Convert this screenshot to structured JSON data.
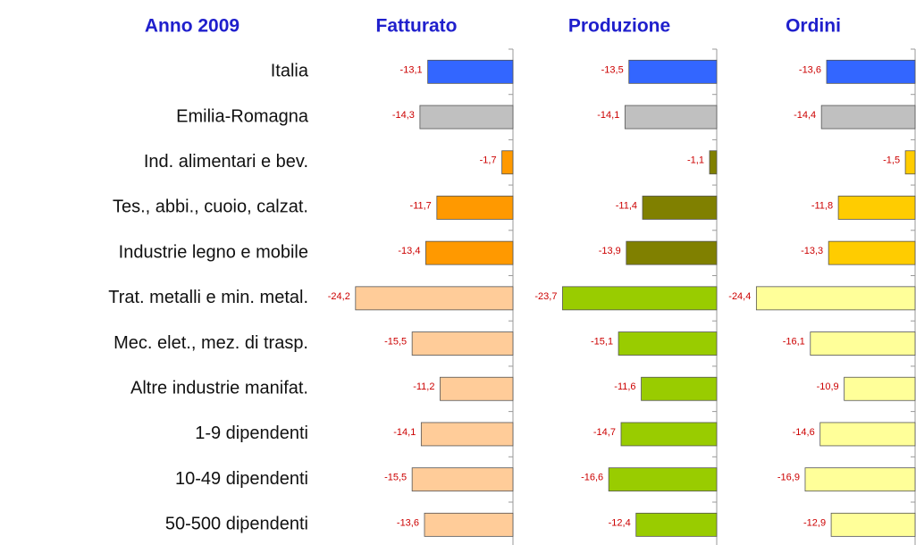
{
  "chart_data": {
    "type": "bar",
    "orientation": "horizontal",
    "title": "Anno 2009",
    "categories": [
      "Italia",
      "Emilia-Romagna",
      "Ind. alimentari e bev.",
      "Tes., abbi., cuoio, calzat.",
      "Industrie legno e mobile",
      "Trat. metalli e min. metal.",
      "Mec. elet., mez. di trasp.",
      "Altre industrie manifat.",
      "1-9 dipendenti",
      "10-49 dipendenti",
      "50-500 dipendenti"
    ],
    "xlim": [
      -25,
      0
    ],
    "series": [
      {
        "name": "Fatturato",
        "colors": [
          "#3366ff",
          "#c0c0c0",
          "#ff9900",
          "#ff9900",
          "#ff9900",
          "#ffcc99",
          "#ffcc99",
          "#ffcc99",
          "#ffcc99",
          "#ffcc99",
          "#ffcc99"
        ],
        "values": [
          -13.1,
          -14.3,
          -1.7,
          -11.7,
          -13.4,
          -24.2,
          -15.5,
          -11.2,
          -14.1,
          -15.5,
          -13.6
        ],
        "value_labels": [
          "-13,1",
          "-14,3",
          "-1,7",
          "-11,7",
          "-13,4",
          "-24,2",
          "-15,5",
          "-11,2",
          "-14,1",
          "-15,5",
          "-13,6"
        ]
      },
      {
        "name": "Produzione",
        "colors": [
          "#3366ff",
          "#c0c0c0",
          "#808000",
          "#808000",
          "#808000",
          "#99cc00",
          "#99cc00",
          "#99cc00",
          "#99cc00",
          "#99cc00",
          "#99cc00"
        ],
        "values": [
          -13.5,
          -14.1,
          -1.1,
          -11.4,
          -13.9,
          -23.7,
          -15.1,
          -11.6,
          -14.7,
          -16.6,
          -12.4
        ],
        "value_labels": [
          "-13,5",
          "-14,1",
          "-1,1",
          "-11,4",
          "-13,9",
          "-23,7",
          "-15,1",
          "-11,6",
          "-14,7",
          "-16,6",
          "-12,4"
        ]
      },
      {
        "name": "Ordini",
        "colors": [
          "#3366ff",
          "#c0c0c0",
          "#ffcc00",
          "#ffcc00",
          "#ffcc00",
          "#ffff99",
          "#ffff99",
          "#ffff99",
          "#ffff99",
          "#ffff99",
          "#ffff99"
        ],
        "values": [
          -13.6,
          -14.4,
          -1.5,
          -11.8,
          -13.3,
          -24.4,
          -16.1,
          -10.9,
          -14.6,
          -16.9,
          -12.9
        ],
        "value_labels": [
          "-13,6",
          "-14,4",
          "-1,5",
          "-11,8",
          "-13,3",
          "-24,4",
          "-16,1",
          "-10,9",
          "-14,6",
          "-16,9",
          "-12,9"
        ]
      }
    ]
  }
}
